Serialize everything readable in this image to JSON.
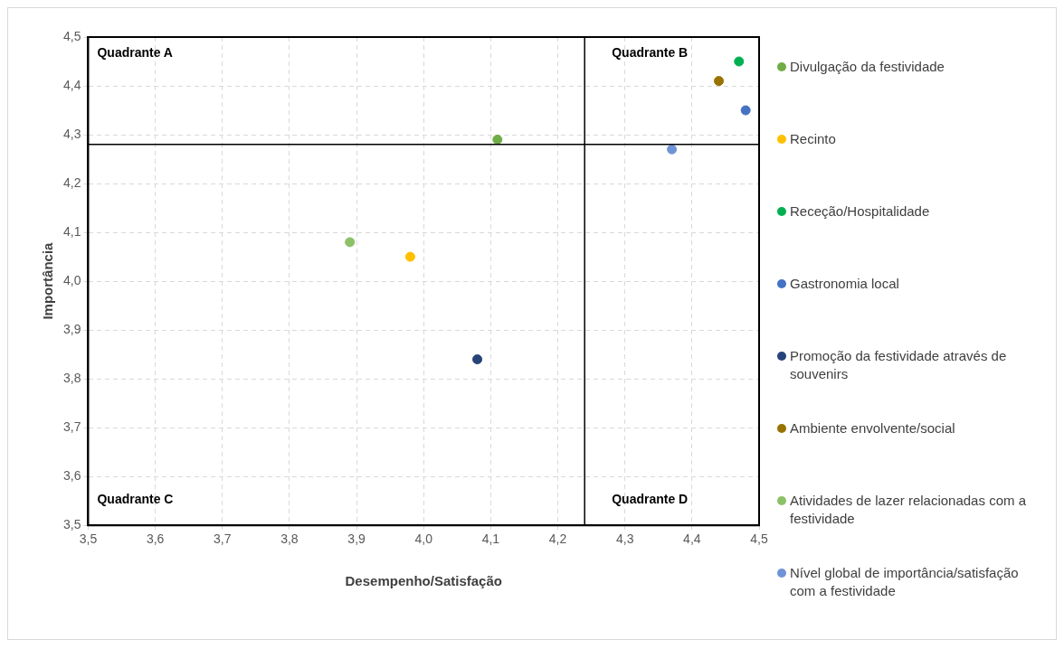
{
  "chart_data": {
    "type": "scatter",
    "xlabel": "Desempenho/Satisfação",
    "ylabel": "Importância",
    "series": [
      {
        "name": "Divulgação da festividade",
        "color": "#70ad47",
        "x": [
          4.11
        ],
        "values": [
          4.29
        ]
      },
      {
        "name": "Recinto",
        "color": "#ffc000",
        "x": [
          3.98
        ],
        "values": [
          4.05
        ]
      },
      {
        "name": "Receção/Hospitalidade",
        "color": "#00b050",
        "x": [
          4.47
        ],
        "values": [
          4.45
        ]
      },
      {
        "name": "Gastronomia local",
        "color": "#4472c4",
        "x": [
          4.48
        ],
        "values": [
          4.35
        ]
      },
      {
        "name": "Promoção da festividade através de souvenirs",
        "color": "#264478",
        "x": [
          4.08
        ],
        "values": [
          3.84
        ]
      },
      {
        "name": "Ambiente envolvente/social",
        "color": "#997300",
        "x": [
          4.44
        ],
        "values": [
          4.41
        ]
      },
      {
        "name": "Atividades de lazer relacionadas com a festividade",
        "color": "#8cc168",
        "x": [
          3.89
        ],
        "values": [
          4.08
        ]
      },
      {
        "name": "Nível global de importância/satisfação com a festividade",
        "color": "#6f94d6",
        "x": [
          4.37
        ],
        "values": [
          4.27
        ]
      }
    ],
    "xlim": [
      3.5,
      4.5
    ],
    "ylim": [
      3.5,
      4.5
    ],
    "xticks": [
      {
        "value": 3.5,
        "label": "3,5"
      },
      {
        "value": 3.6,
        "label": "3,6"
      },
      {
        "value": 3.7,
        "label": "3,7"
      },
      {
        "value": 3.8,
        "label": "3,8"
      },
      {
        "value": 3.9,
        "label": "3,9"
      },
      {
        "value": 4.0,
        "label": "4,0"
      },
      {
        "value": 4.1,
        "label": "4,1"
      },
      {
        "value": 4.2,
        "label": "4,2"
      },
      {
        "value": 4.3,
        "label": "4,3"
      },
      {
        "value": 4.4,
        "label": "4,4"
      },
      {
        "value": 4.5,
        "label": "4,5"
      }
    ],
    "yticks": [
      {
        "value": 3.5,
        "label": "3,5"
      },
      {
        "value": 3.6,
        "label": "3,6"
      },
      {
        "value": 3.7,
        "label": "3,7"
      },
      {
        "value": 3.8,
        "label": "3,8"
      },
      {
        "value": 3.9,
        "label": "3,9"
      },
      {
        "value": 4.0,
        "label": "4,0"
      },
      {
        "value": 4.1,
        "label": "4,1"
      },
      {
        "value": 4.2,
        "label": "4,2"
      },
      {
        "value": 4.3,
        "label": "4,3"
      },
      {
        "value": 4.4,
        "label": "4,4"
      },
      {
        "value": 4.5,
        "label": "4,5"
      }
    ],
    "ref_lines": [
      {
        "axis": "x",
        "value": 4.24,
        "color": "#000000"
      },
      {
        "axis": "y",
        "value": 4.28,
        "color": "#000000"
      }
    ],
    "annotations": [
      "Quadrante A",
      "Quadrante B",
      "Quadrante C",
      "Quadrante D"
    ],
    "grid": true,
    "legend": "right",
    "marker": "circle"
  }
}
